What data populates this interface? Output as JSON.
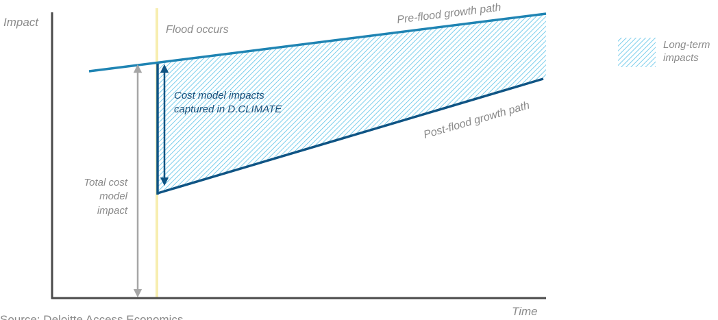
{
  "axes": {
    "y_label": "Impact",
    "x_label": "Time"
  },
  "flood": {
    "label": "Flood occurs"
  },
  "paths": {
    "pre_flood": "Pre-flood growth path",
    "post_flood": "Post-flood growth path"
  },
  "annotations": {
    "captured_line1": "Cost model impacts",
    "captured_line2": "captured in D.CLIMATE",
    "total_line1": "Total cost",
    "total_line2": "model",
    "total_line3": "impact"
  },
  "legend": {
    "line1": "Long-term",
    "line2": "impacts"
  },
  "source": "Source: Deloitte Access Economics",
  "colors": {
    "pre_flood": "#1f84b3",
    "post_flood": "#0f5484",
    "flood_line": "#f7eeb0",
    "axis": "#4a4a4a",
    "total_arrow": "#a6a6a6",
    "hatch": "#5bc2e7"
  }
}
